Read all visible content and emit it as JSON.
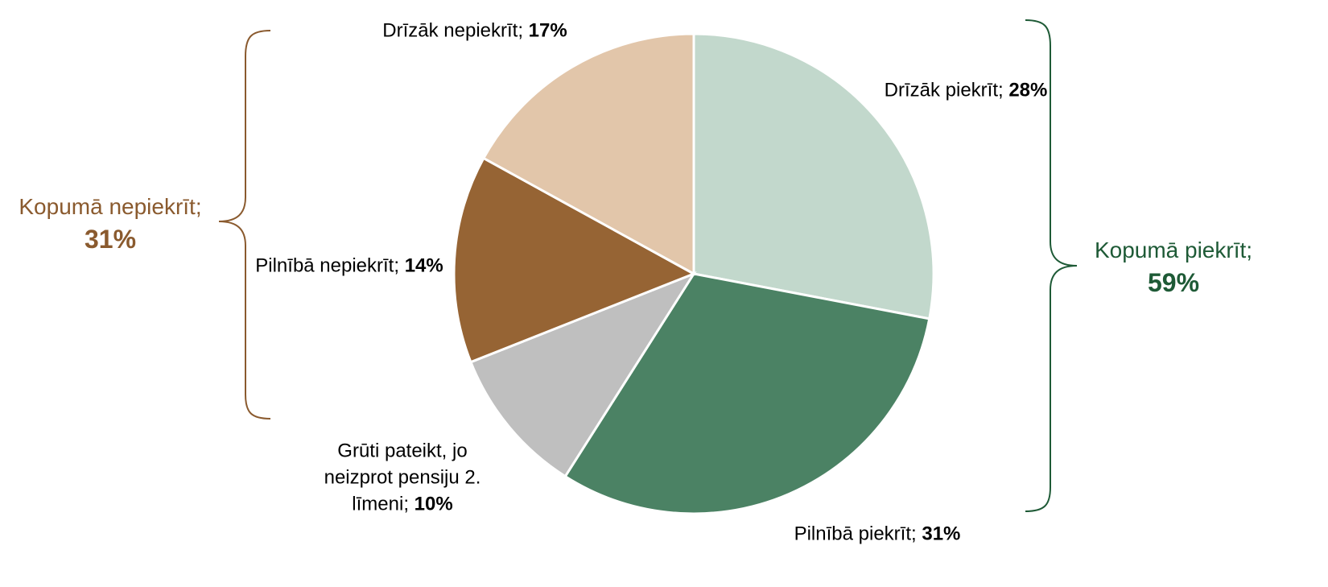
{
  "chart_data": {
    "type": "pie",
    "categories": [
      "Drīzāk piekrīt;",
      "Pilnībā piekrīt;",
      "Grūti pateikt, jo neizprot pensiju 2. līmeni;",
      "Pilnībā nepiekrīt;",
      "Drīzāk nepiekrīt;"
    ],
    "values": [
      28,
      31,
      10,
      14,
      17
    ],
    "value_labels": [
      "28%",
      "31%",
      "10%",
      "14%",
      "17%"
    ],
    "colors": [
      "#c2d8cc",
      "#4b8264",
      "#bfbfbf",
      "#966434",
      "#e2c6aa"
    ],
    "annotations": [
      {
        "text": "Kopumā nepiekrīt;",
        "value": 31,
        "value_label": "31%",
        "color": "#8a5a2e"
      },
      {
        "text": "Kopumā piekrīt;",
        "value": 59,
        "value_label": "59%",
        "color": "#1e5a36"
      }
    ]
  }
}
